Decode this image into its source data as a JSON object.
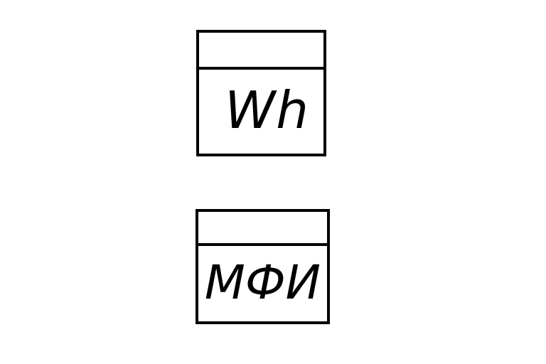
{
  "diagram": {
    "symbols": [
      {
        "id": "meter",
        "label": "Wh"
      },
      {
        "id": "mfi",
        "label": "МФИ"
      }
    ]
  }
}
